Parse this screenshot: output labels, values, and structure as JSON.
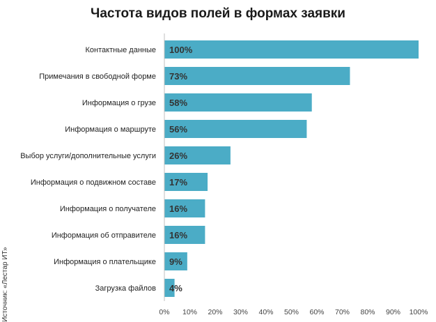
{
  "chart_data": {
    "type": "bar",
    "orientation": "horizontal",
    "title": "Частота видов полей в формах заявки",
    "source": "Источник: «Лестар ИТ»",
    "categories": [
      "Контактные данные",
      "Примечания в свободной форме",
      "Информация о грузе",
      "Информация о маршруте",
      "Выбор услуги/дополнительные услуги",
      "Информация о подвижном составе",
      "Информация о получателе",
      "Информация об отправителе",
      "Информация о плательщике",
      "Загрузка файлов"
    ],
    "values": [
      100,
      73,
      58,
      56,
      26,
      17,
      16,
      16,
      9,
      4
    ],
    "value_labels": [
      "100%",
      "73%",
      "58%",
      "56%",
      "26%",
      "17%",
      "16%",
      "16%",
      "9%",
      "4%"
    ],
    "xlim": [
      0,
      100
    ],
    "x_ticks": [
      "0%",
      "10%",
      "20%",
      "30%",
      "40%",
      "50%",
      "60%",
      "70%",
      "80%",
      "90%",
      "100%"
    ],
    "bar_color": "#4bacc6",
    "grid": false,
    "legend": "none"
  }
}
